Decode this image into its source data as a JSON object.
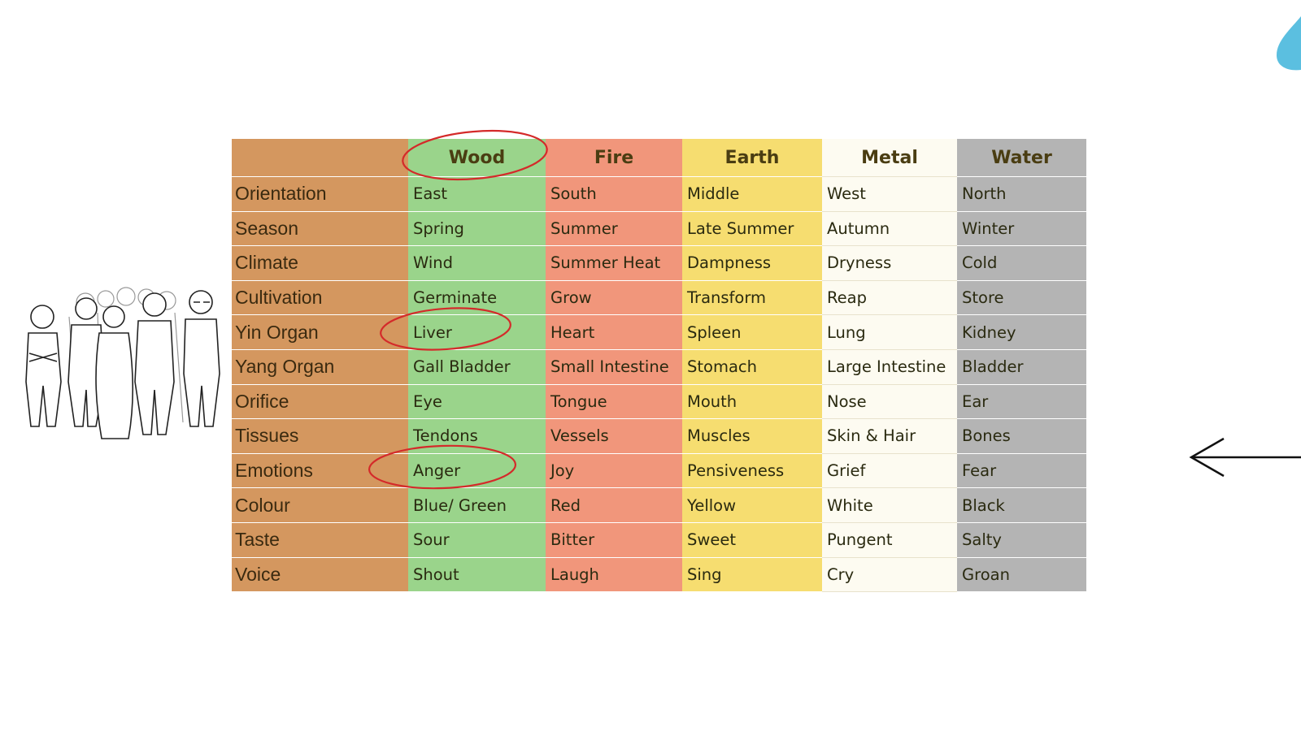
{
  "table": {
    "columns": [
      "Wood",
      "Fire",
      "Earth",
      "Metal",
      "Water"
    ],
    "rows": [
      {
        "label": "Orientation",
        "cells": [
          "East",
          "South",
          "Middle",
          "West",
          "North"
        ]
      },
      {
        "label": "Season",
        "cells": [
          "Spring",
          "Summer",
          "Late Summer",
          "Autumn",
          "Winter"
        ]
      },
      {
        "label": "Climate",
        "cells": [
          "Wind",
          "Summer Heat",
          "Dampness",
          "Dryness",
          "Cold"
        ]
      },
      {
        "label": "Cultivation",
        "cells": [
          "Germinate",
          "Grow",
          "Transform",
          "Reap",
          "Store"
        ]
      },
      {
        "label": "Yin Organ",
        "cells": [
          "Liver",
          "Heart",
          "Spleen",
          "Lung",
          "Kidney"
        ]
      },
      {
        "label": "Yang Organ",
        "cells": [
          "Gall Bladder",
          "Small Intestine",
          "Stomach",
          "Large Intestine",
          "Bladder"
        ]
      },
      {
        "label": "Orifice",
        "cells": [
          "Eye",
          "Tongue",
          "Mouth",
          "Nose",
          "Ear"
        ]
      },
      {
        "label": "Tissues",
        "cells": [
          "Tendons",
          "Vessels",
          "Muscles",
          "Skin & Hair",
          "Bones"
        ]
      },
      {
        "label": "Emotions",
        "cells": [
          "Anger",
          "Joy",
          "Pensiveness",
          "Grief",
          "Fear"
        ]
      },
      {
        "label": "Colour",
        "cells": [
          "Blue/ Green",
          "Red",
          "Yellow",
          "White",
          "Black"
        ]
      },
      {
        "label": "Taste",
        "cells": [
          "Sour",
          "Bitter",
          "Sweet",
          "Pungent",
          "Salty"
        ]
      },
      {
        "label": "Voice",
        "cells": [
          "Shout",
          "Laugh",
          "Sing",
          "Cry",
          "Groan"
        ]
      }
    ]
  }
}
